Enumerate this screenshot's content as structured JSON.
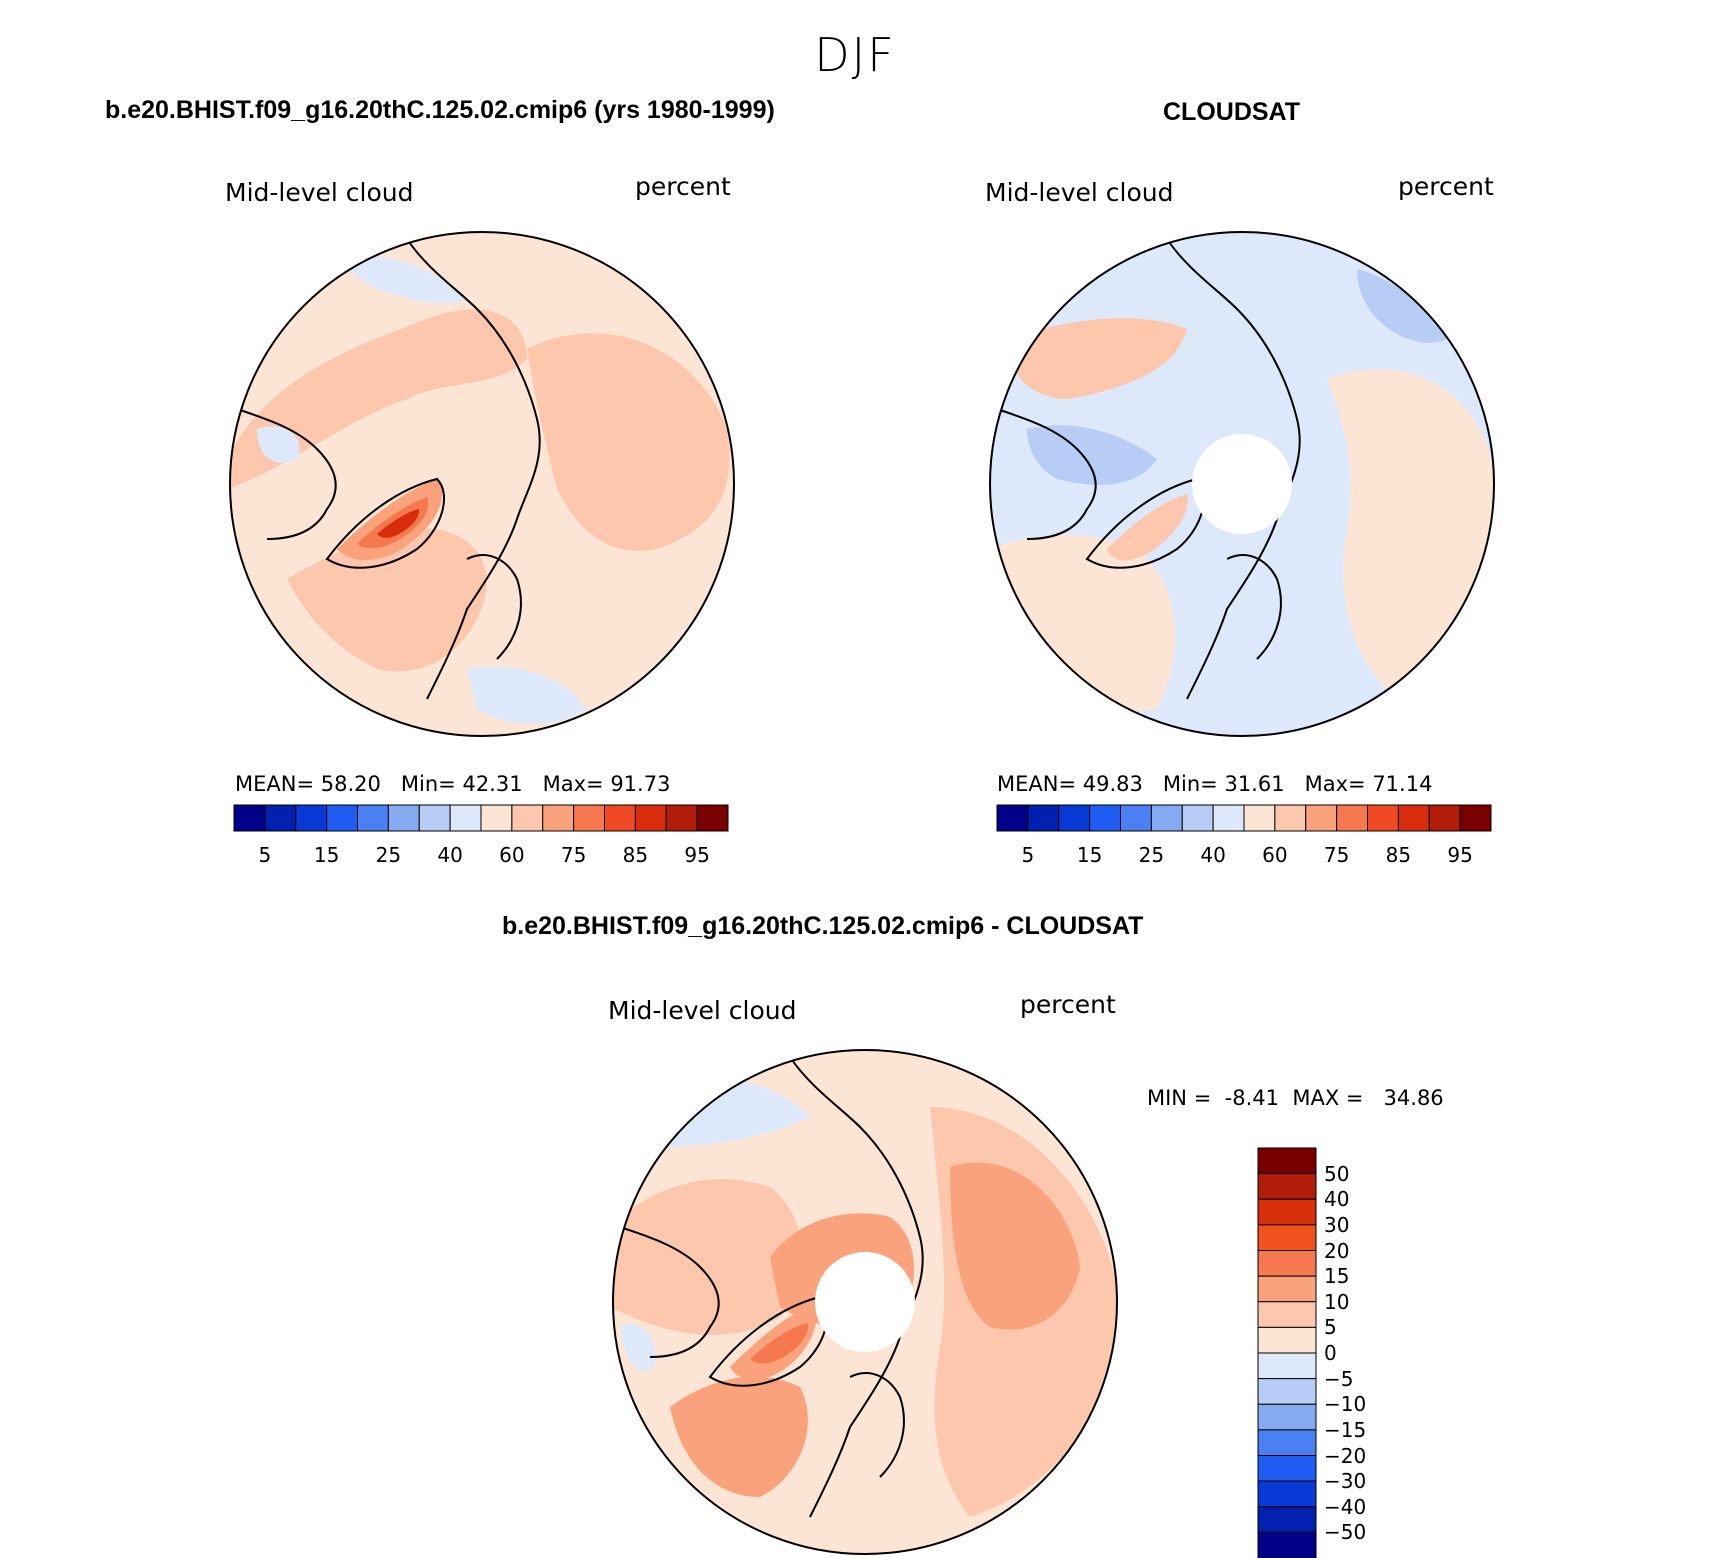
{
  "season": "DJF",
  "panels": [
    {
      "title": "b.e20.BHIST.f09_g16.20thC.125.02.cmip6 (yrs 1980-1999)",
      "variable": "Mid-level cloud",
      "units": "percent",
      "stats": {
        "mean_label": "MEAN=",
        "mean": "58.20",
        "min_label": "Min=",
        "min": "42.31",
        "max_label": "Max=",
        "max": "91.73"
      },
      "background_level": "55",
      "has_polar_hole": false
    },
    {
      "title": "CLOUDSAT",
      "variable": "Mid-level cloud",
      "units": "percent",
      "stats": {
        "mean_label": "MEAN=",
        "mean": "49.83",
        "min_label": "Min=",
        "min": "31.61",
        "max_label": "Max=",
        "max": "71.14"
      },
      "background_level": "45",
      "has_polar_hole": true
    },
    {
      "title": "b.e20.BHIST.f09_g16.20thC.125.02.cmip6 - CLOUDSAT",
      "variable": "Mid-level cloud",
      "units": "percent",
      "stats": {
        "min_label": "MIN =",
        "min": "-8.41",
        "max_label": "MAX =",
        "max": "34.86"
      },
      "background_level": "5",
      "has_polar_hole": true
    }
  ],
  "colorbar_abs": {
    "colors": [
      "#00008b",
      "#0020b0",
      "#0a3ad6",
      "#1e5cf2",
      "#4a80f2",
      "#86aaf2",
      "#b8cdf6",
      "#dde9fb",
      "#fde5d6",
      "#fcc7ad",
      "#f9a27c",
      "#f5784f",
      "#f04a25",
      "#d92c0c",
      "#b21d0a",
      "#7a0000"
    ],
    "tick_labels": [
      "5",
      "15",
      "25",
      "40",
      "60",
      "75",
      "85",
      "95"
    ]
  },
  "colorbar_diff": {
    "colors": [
      "#7a0000",
      "#b21d0a",
      "#d9300c",
      "#f2521d",
      "#f5784f",
      "#f9a27c",
      "#fcc7ad",
      "#fde5d6",
      "#dde9fb",
      "#b8cdf6",
      "#86aaf2",
      "#4a80f2",
      "#1e5cf2",
      "#0a3ad6",
      "#0020b0",
      "#00008b"
    ],
    "tick_labels": [
      "50",
      "40",
      "30",
      "20",
      "15",
      "10",
      "5",
      "0",
      "−5",
      "−10",
      "−15",
      "−20",
      "−30",
      "−40",
      "−50"
    ]
  },
  "color_map": {
    "-5": "#dde9fb",
    "0": "#fde5d6",
    "5": "#fde5d6",
    "10": "#fcc7ad",
    "15": "#f9a27c",
    "20": "#f5784f",
    "30": "#f04a25",
    "35": "#b8cdf6",
    "40": "#dde9fb",
    "45": "#dde9fb",
    "50": "#fde5d6",
    "55": "#fde5d6",
    "60": "#fcc7ad",
    "65": "#f9a27c",
    "70": "#f5784f",
    "75": "#f04a25",
    "80": "#d92c0c",
    "85": "#b21d0a"
  }
}
